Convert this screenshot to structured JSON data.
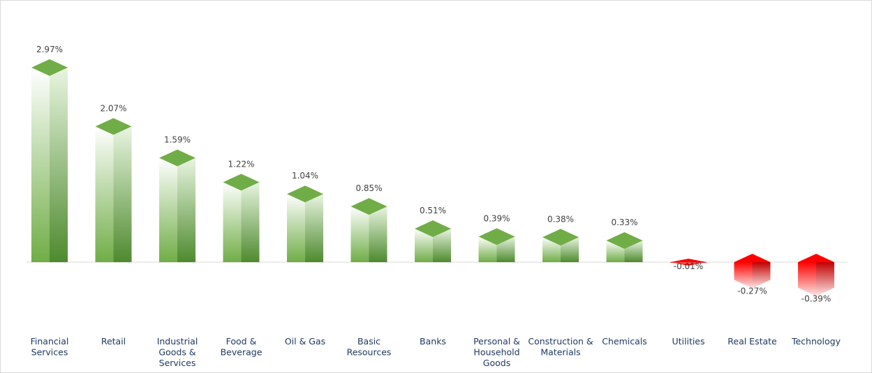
{
  "chart_data": {
    "type": "bar",
    "style": "3d-column",
    "title": "",
    "xlabel": "",
    "ylabel": "",
    "ylim": [
      -0.5,
      3.2
    ],
    "grid": false,
    "legend": "none",
    "categories": [
      "Financial Services",
      "Retail",
      "Industrial Goods & Services",
      "Food & Beverage",
      "Oil & Gas",
      "Basic Resources",
      "Banks",
      "Personal & Household Goods",
      "Construction & Materials",
      "Chemicals",
      "Utilities",
      "Real Estate",
      "Technology"
    ],
    "category_lines": [
      [
        "Financial",
        "Services"
      ],
      [
        "Retail"
      ],
      [
        "Industrial",
        "Goods &",
        "Services"
      ],
      [
        "Food &",
        "Beverage"
      ],
      [
        "Oil & Gas"
      ],
      [
        "Basic",
        "Resources"
      ],
      [
        "Banks"
      ],
      [
        "Personal &",
        "Household",
        "Goods"
      ],
      [
        "Construction &",
        "Materials"
      ],
      [
        "Chemicals"
      ],
      [
        "Utilities"
      ],
      [
        "Real Estate"
      ],
      [
        "Technology"
      ]
    ],
    "values": [
      2.97,
      2.07,
      1.59,
      1.22,
      1.04,
      0.85,
      0.51,
      0.39,
      0.38,
      0.33,
      -0.01,
      -0.27,
      -0.39
    ],
    "data_labels": [
      "2.97%",
      "2.07%",
      "1.59%",
      "1.22%",
      "1.04%",
      "0.85%",
      "0.51%",
      "0.39%",
      "0.38%",
      "0.33%",
      "-0.01%",
      "-0.27%",
      "-0.39%"
    ],
    "colors": {
      "positive": "#70ad47",
      "positive_dark": "#4e8a2e",
      "positive_light": "#e9f5e1",
      "negative": "#ff0000",
      "negative_dark": "#c00000",
      "negative_light": "#ffe5e5",
      "axis": "#d9d9d9",
      "value_text": "#404040",
      "category_text": "#1f3864"
    }
  }
}
